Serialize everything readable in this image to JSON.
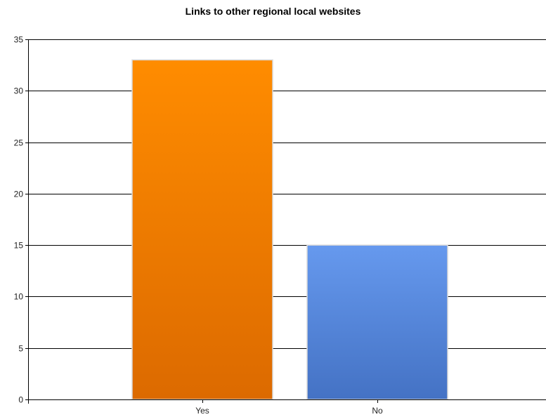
{
  "chart_data": {
    "type": "bar",
    "title": "Links to other regional local websites",
    "xlabel": "",
    "ylabel": "",
    "categories": [
      "Yes",
      "No"
    ],
    "values": [
      33,
      15
    ],
    "ylim": [
      0,
      35
    ],
    "yticks": [
      0,
      5,
      10,
      15,
      20,
      25,
      30,
      35
    ],
    "grid": true,
    "legend": "none",
    "bar_colors": [
      {
        "top": "#ff8c00",
        "bottom": "#dc6a00"
      },
      {
        "top": "#6699ee",
        "bottom": "#4472c4"
      }
    ]
  }
}
